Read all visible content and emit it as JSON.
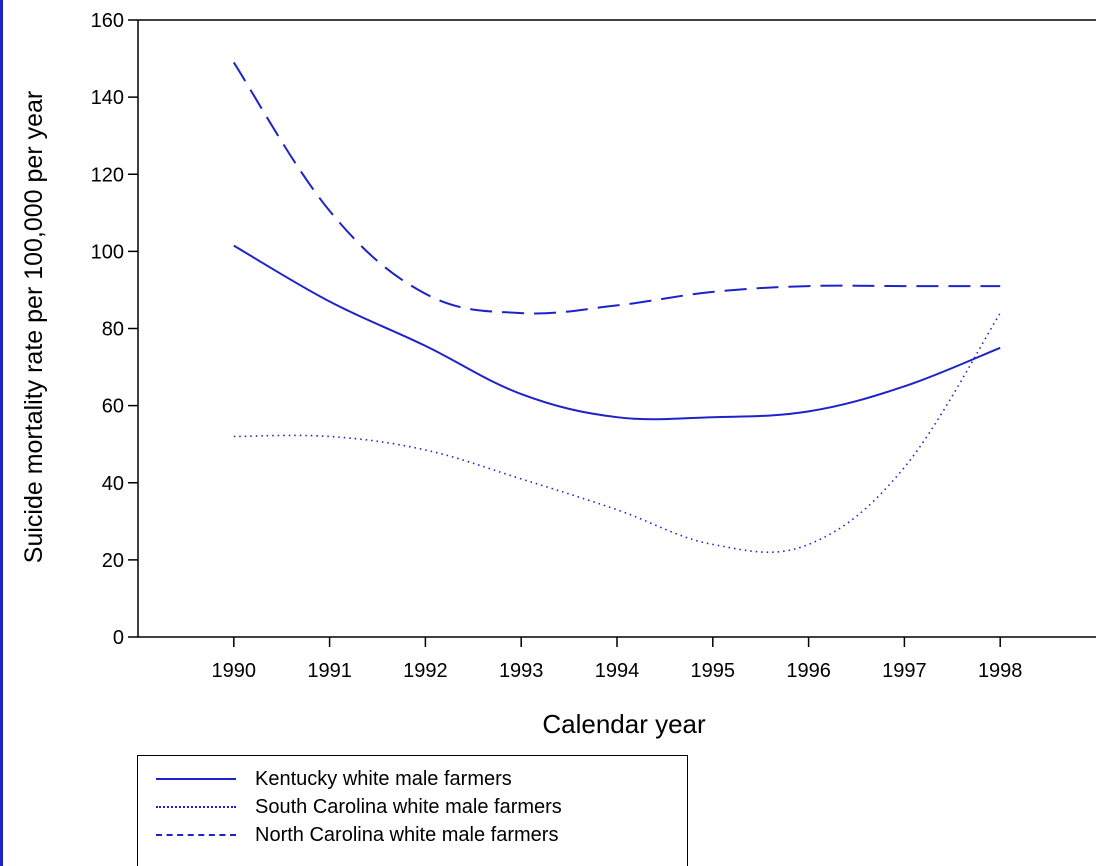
{
  "chart_data": {
    "type": "line",
    "title": "",
    "xlabel": "Calendar year",
    "ylabel": "Suicide mortality rate per 100,000 per year",
    "x": [
      "1990",
      "1991",
      "1992",
      "1993",
      "1994",
      "1995",
      "1996",
      "1997",
      "1998"
    ],
    "xlim": [
      1989,
      1999
    ],
    "ylim": [
      0,
      160
    ],
    "yticks": [
      "0",
      "20",
      "40",
      "60",
      "80",
      "100",
      "120",
      "140",
      "160"
    ],
    "grid": false,
    "legend_position": "bottom-left",
    "line_color": "#1d23c8",
    "series": [
      {
        "name": "Kentucky white male farmers",
        "style": "solid",
        "values": [
          101.5,
          87,
          75.5,
          63,
          57,
          57,
          58.5,
          65,
          75
        ]
      },
      {
        "name": "South Carolina white male farmers",
        "style": "dotted",
        "values": [
          52,
          52,
          48.5,
          41,
          33,
          24,
          24,
          44,
          84
        ]
      },
      {
        "name": "North Carolina white male farmers",
        "style": "dashed",
        "values": [
          149,
          110.5,
          89,
          84,
          86,
          89.5,
          91,
          91,
          91
        ]
      }
    ]
  }
}
